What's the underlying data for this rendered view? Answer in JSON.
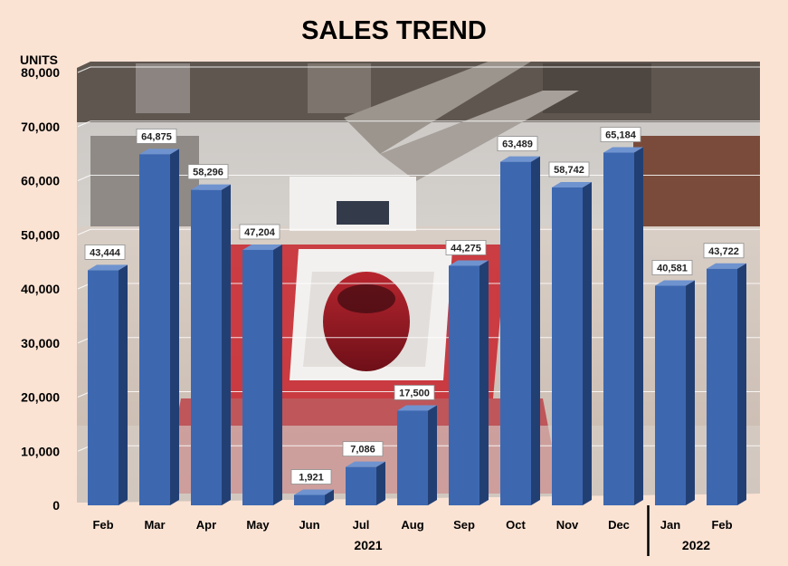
{
  "chart_data": {
    "type": "bar",
    "title": "SALES TREND",
    "ylabel": "UNITS",
    "xlabel": "",
    "ylim": [
      0,
      80000
    ],
    "yticks": [
      0,
      10000,
      20000,
      30000,
      40000,
      50000,
      60000,
      70000,
      80000
    ],
    "ytick_labels": [
      "0",
      "10,000",
      "20,000",
      "30,000",
      "40,000",
      "50,000",
      "60,000",
      "70,000",
      "80,000"
    ],
    "categories": [
      "Feb",
      "Mar",
      "Apr",
      "May",
      "Jun",
      "Jul",
      "Aug",
      "Sep",
      "Oct",
      "Nov",
      "Dec",
      "Jan",
      "Feb"
    ],
    "values": [
      43444,
      64875,
      58296,
      47204,
      1921,
      7086,
      17500,
      44275,
      63489,
      58742,
      65184,
      40581,
      43722
    ],
    "data_labels": [
      "43,444",
      "64,875",
      "58,296",
      "47,204",
      "1,921",
      "7,086",
      "17,500",
      "44,275",
      "63,489",
      "58,742",
      "65,184",
      "40,581",
      "43,722"
    ],
    "year_groups": [
      {
        "label": "2021",
        "count": 11
      },
      {
        "label": "2022",
        "count": 2
      }
    ],
    "grid": true,
    "background": "photo of a shopping mall car exhibition",
    "colors": {
      "bar_front": "#3d68b0",
      "bar_side": "#223f74",
      "bar_top": "#6f93cf",
      "page_background": "#fbe3d4",
      "grid": "#ffffff",
      "data_label_box": "#ffffff",
      "divider": "#000000"
    }
  }
}
